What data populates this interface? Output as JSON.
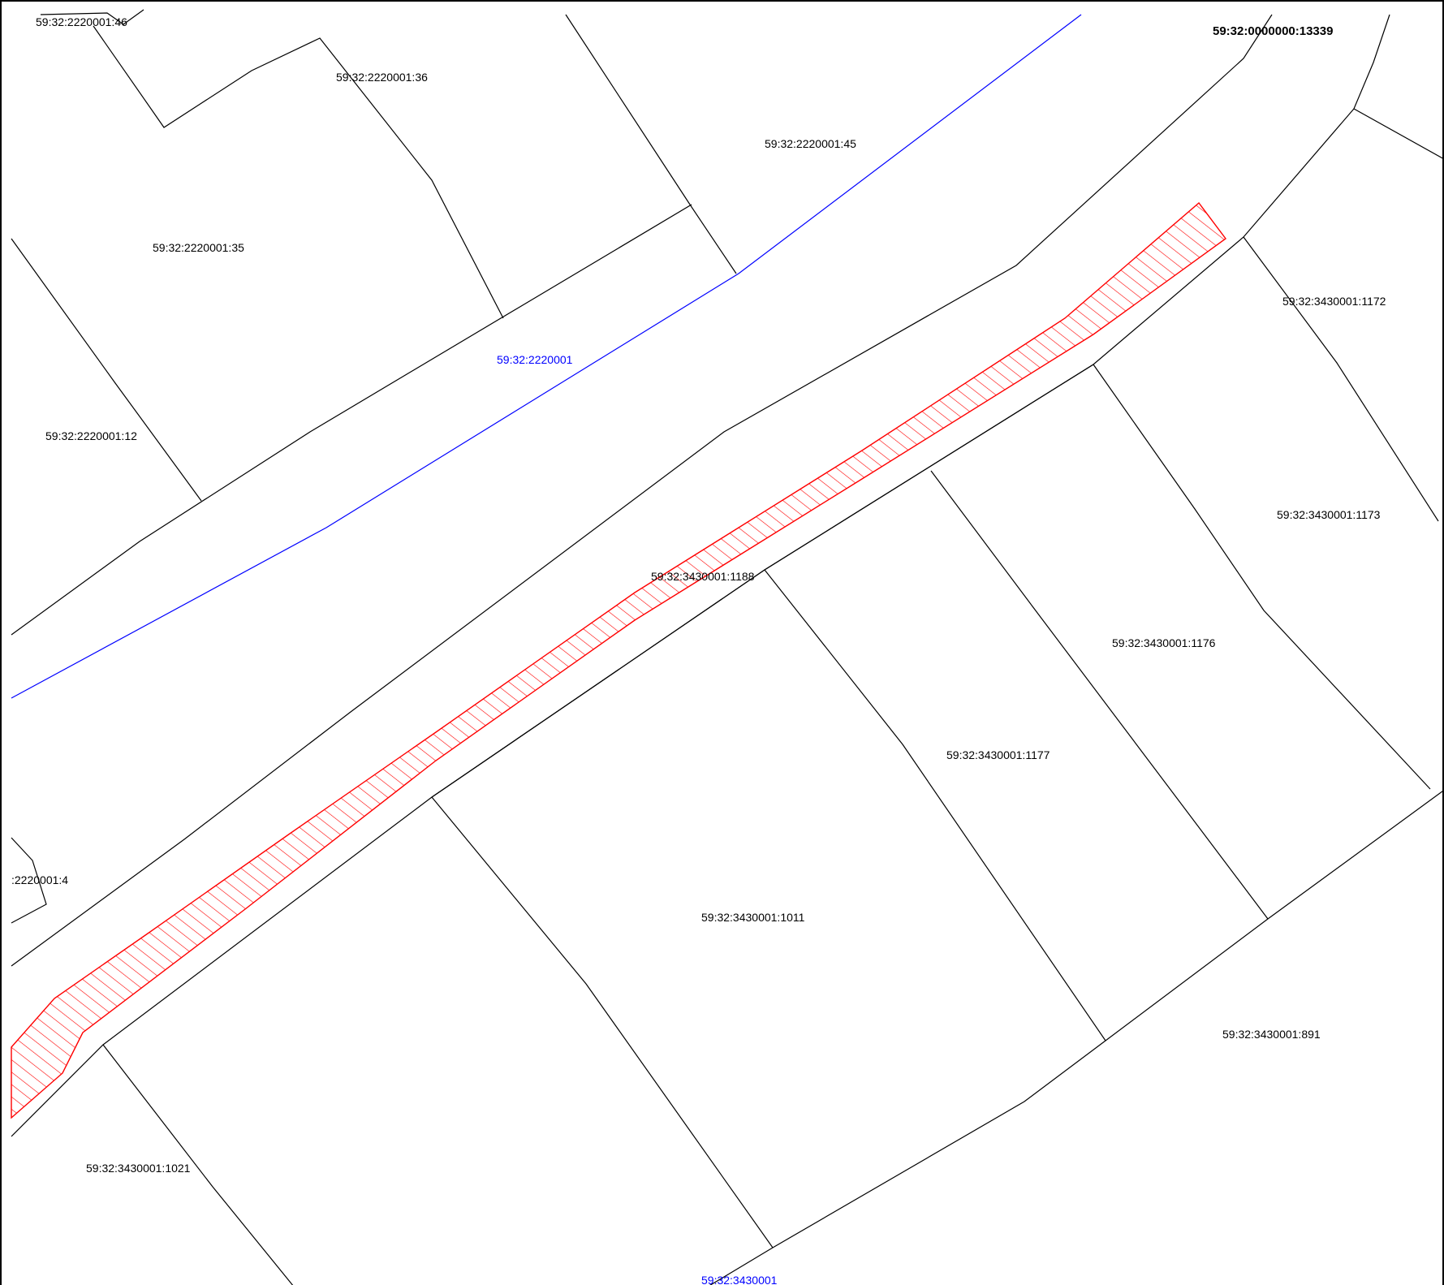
{
  "colors": {
    "parcel_line": "#000000",
    "block_line": "#0000ff",
    "highlight": "#ff0000",
    "background": "#ffffff"
  },
  "block_labels": {
    "block_north": "59:32:2220001",
    "block_south": "59:32:3430001"
  },
  "parcel_labels": {
    "p46": "59:32:2220001:46",
    "p13339": "59:32:0000000:13339",
    "p36": "59:32:2220001:36",
    "p45": "59:32:2220001:45",
    "p35": "59:32:2220001:35",
    "p1172": "59:32:3430001:1172",
    "p12": "59:32:2220001:12",
    "p1173": "59:32:3430001:1173",
    "p1188": "59:32:3430001:1188",
    "p1176": "59:32:3430001:1176",
    "p1177": "59:32:3430001:1177",
    "p4": ":2220001:4",
    "p1011": "59:32:3430001:1011",
    "p891": "59:32:3430001:891",
    "p1021": "59:32:3430001:1021"
  }
}
